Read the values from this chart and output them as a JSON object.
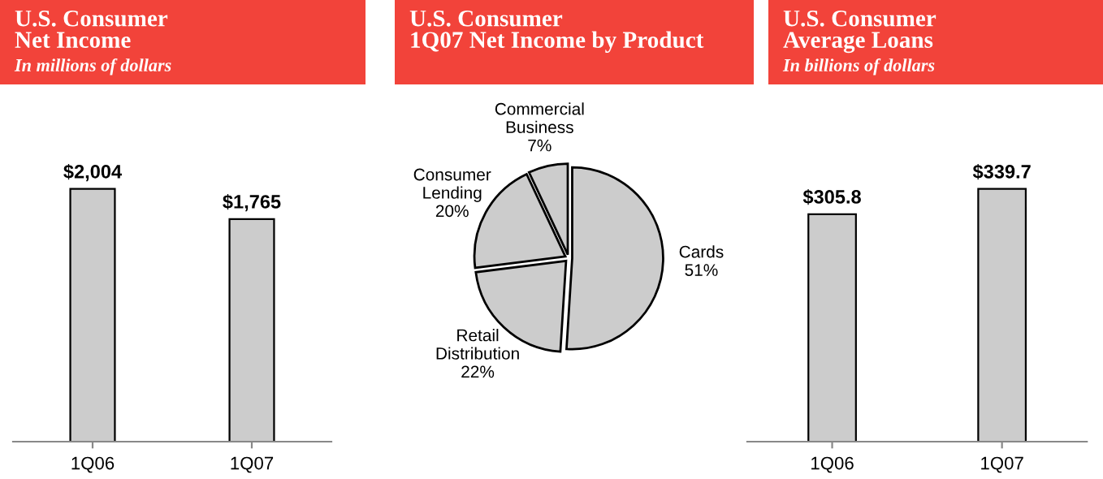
{
  "chart_data": [
    {
      "type": "bar",
      "title": "U.S. Consumer\nNet Income",
      "subtitle": "In millions of dollars",
      "categories": [
        "1Q06",
        "1Q07"
      ],
      "values": [
        2004,
        1765
      ],
      "value_labels": [
        "$2,004",
        "$1,765"
      ],
      "color": "#cccccc"
    },
    {
      "type": "pie",
      "title": "U.S. Consumer\n1Q07 Net Income by Product",
      "categories": [
        "Cards",
        "Retail\nDistribution",
        "Consumer\nLending",
        "Commercial\nBusiness"
      ],
      "values": [
        51,
        22,
        20,
        7
      ],
      "value_labels": [
        "51%",
        "22%",
        "20%",
        "7%"
      ],
      "colors": [
        "#cccccc",
        "#cccccc",
        "#cccccc",
        "#cccccc"
      ]
    },
    {
      "type": "bar",
      "title": "U.S. Consumer\nAverage Loans",
      "subtitle": "In billions of dollars",
      "categories": [
        "1Q06",
        "1Q07"
      ],
      "values": [
        305.8,
        339.7
      ],
      "value_labels": [
        "$305.8",
        "$339.7"
      ],
      "color": "#cccccc"
    }
  ]
}
